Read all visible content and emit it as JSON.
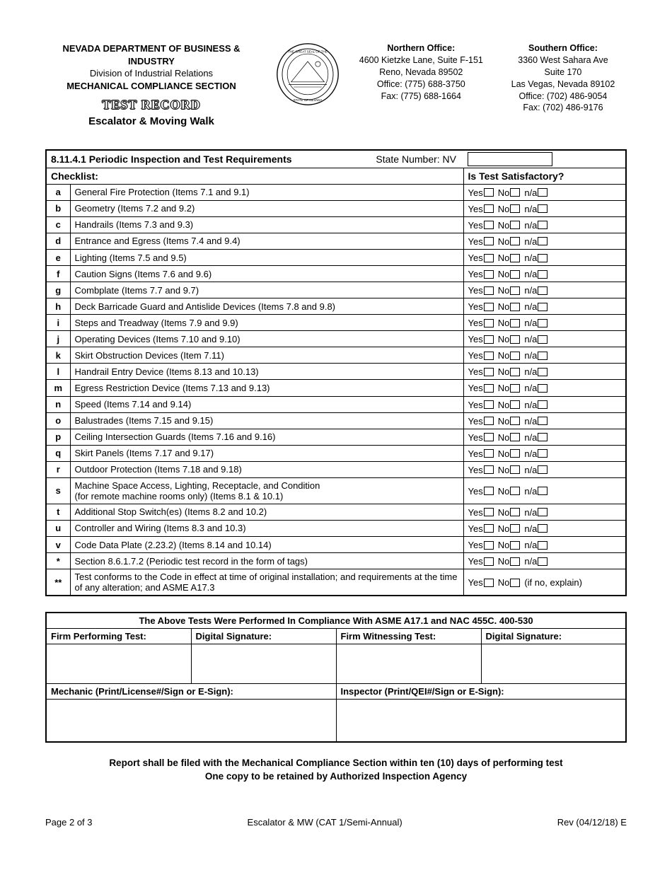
{
  "header": {
    "dept": "NEVADA DEPARTMENT OF BUSINESS & INDUSTRY",
    "division": "Division of Industrial Relations",
    "section": "MECHANICAL COMPLIANCE SECTION",
    "test_record": "TEST RECORD",
    "subtitle": "Escalator & Moving Walk",
    "north": {
      "title": "Northern Office:",
      "line1": "4600 Kietzke Lane, Suite F-151",
      "line2": "Reno, Nevada 89502",
      "line3": "Office:  (775) 688-3750",
      "line4": "Fax:  (775) 688-1664"
    },
    "south": {
      "title": "Southern Office:",
      "line1": "3360 West Sahara Ave",
      "line2": "Suite 170",
      "line3": "Las Vegas, Nevada 89102",
      "line4": "Office:  (702) 486-9054",
      "line5": "Fax:  (702) 486-9176"
    }
  },
  "table": {
    "title": "8.11.4.1 Periodic Inspection and Test Requirements",
    "state_label": "State Number:  NV",
    "checklist_label": "Checklist:",
    "satisfactory_label": "Is Test Satisfactory?",
    "yes": "Yes",
    "no": "No",
    "na": "n/a",
    "ifno": "(if no, explain)"
  },
  "rows": [
    {
      "k": "a",
      "d": "General Fire Protection (Items 7.1 and 9.1)"
    },
    {
      "k": "b",
      "d": "Geometry (Items 7.2 and 9.2)"
    },
    {
      "k": "c",
      "d": "Handrails (Items 7.3 and 9.3)"
    },
    {
      "k": "d",
      "d": "Entrance and Egress (Items 7.4 and 9.4)"
    },
    {
      "k": "e",
      "d": "Lighting (Items 7.5 and 9.5)"
    },
    {
      "k": "f",
      "d": "Caution Signs (Items 7.6 and 9.6)"
    },
    {
      "k": "g",
      "d": "Combplate (Items 7.7 and 9.7)"
    },
    {
      "k": "h",
      "d": "Deck Barricade Guard and Antislide Devices (Items 7.8 and 9.8)"
    },
    {
      "k": "i",
      "d": "Steps and Treadway (Items 7.9 and 9.9)"
    },
    {
      "k": "j",
      "d": "Operating Devices (Items 7.10 and 9.10)"
    },
    {
      "k": "k",
      "d": "Skirt Obstruction Devices (Item 7.11)"
    },
    {
      "k": "l",
      "d": "Handrail Entry Device (Items 8.13 and 10.13)"
    },
    {
      "k": "m",
      "d": "Egress Restriction Device (Items 7.13 and 9.13)"
    },
    {
      "k": "n",
      "d": "Speed (Items 7.14 and 9.14)"
    },
    {
      "k": "o",
      "d": "Balustrades (Items 7.15 and 9.15)"
    },
    {
      "k": "p",
      "d": "Ceiling Intersection Guards (Items 7.16 and 9.16)"
    },
    {
      "k": "q",
      "d": "Skirt Panels (Items 7.17 and 9.17)"
    },
    {
      "k": "r",
      "d": "Outdoor Protection (Items 7.18 and 9.18)"
    },
    {
      "k": "s",
      "d": "Machine Space Access, Lighting, Receptacle, and Condition\n(for remote machine rooms only) (Items 8.1 & 10.1)"
    },
    {
      "k": "t",
      "d": "Additional Stop Switch(es) (Items 8.2 and 10.2)"
    },
    {
      "k": "u",
      "d": "Controller and Wiring (Items 8.3 and 10.3)"
    },
    {
      "k": "v",
      "d": "Code Data Plate (2.23.2) (Items 8.14 and 10.14)"
    },
    {
      "k": "*",
      "d": "Section 8.6.1.7.2 (Periodic test record in the form of tags)"
    },
    {
      "k": "**",
      "d": "Test conforms to the Code in effect at time of original installation; and requirements at the time of any alteration; and ASME A17.3",
      "special": true
    }
  ],
  "sig": {
    "compliance": "The Above Tests Were Performed In Compliance With ASME A17.1 and NAC 455C. 400-530",
    "firm_perf": "Firm Performing Test:",
    "dig_sig": "Digital Signature:",
    "firm_wit": "Firm Witnessing Test:",
    "mechanic": "Mechanic (Print/License#/Sign or E-Sign):",
    "inspector": "Inspector (Print/QEI#/Sign or E-Sign):"
  },
  "footer_note1": "Report shall be filed with the Mechanical Compliance Section within ten (10) days of performing test",
  "footer_note2": "One copy to be retained by Authorized Inspection Agency",
  "pgfoot": {
    "left": "Page 2 of 3",
    "center": "Escalator & MW (CAT 1/Semi-Annual)",
    "right": "Rev (04/12/18) E"
  }
}
